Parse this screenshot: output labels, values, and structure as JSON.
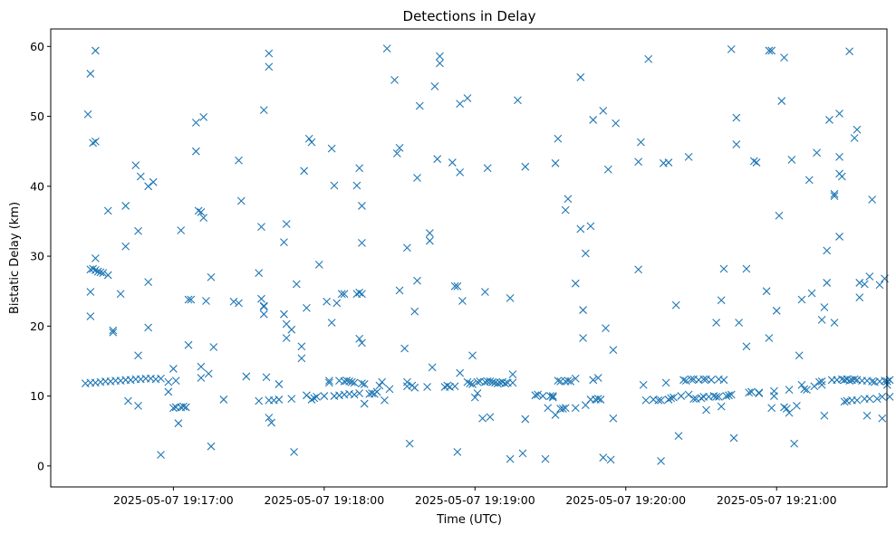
{
  "chart_data": {
    "type": "scatter",
    "title": "Detections in Delay",
    "xlabel": "Time (UTC)",
    "ylabel": "Bistatic Delay (km)",
    "marker": "x",
    "color": "#1f77b4",
    "grid": false,
    "x_unit": "seconds after 2025-05-07 19:17:00",
    "xlim": [
      -48.8,
      283.9
    ],
    "ylim": [
      -3.0,
      62.5
    ],
    "x_ticks": [
      {
        "value": 0,
        "label": "2025-05-07 19:17:00"
      },
      {
        "value": 60,
        "label": "2025-05-07 19:18:00"
      },
      {
        "value": 120,
        "label": "2025-05-07 19:19:00"
      },
      {
        "value": 180,
        "label": "2025-05-07 19:20:00"
      },
      {
        "value": 240,
        "label": "2025-05-07 19:21:00"
      }
    ],
    "y_ticks": [
      0,
      10,
      20,
      30,
      40,
      50,
      60
    ],
    "points": [
      [
        -34,
        50.3
      ],
      [
        -33,
        56.1
      ],
      [
        -32,
        46.2
      ],
      [
        -31,
        59.4
      ],
      [
        -31,
        46.4
      ],
      [
        -33,
        24.9
      ],
      [
        -33,
        21.4
      ],
      [
        -33,
        28.1
      ],
      [
        -32,
        28.2
      ],
      [
        -31,
        28
      ],
      [
        -30,
        27.8
      ],
      [
        -29,
        27.7
      ],
      [
        -28,
        27.6
      ],
      [
        -31,
        29.7
      ],
      [
        -35,
        11.8
      ],
      [
        -33,
        11.9
      ],
      [
        -31,
        11.9
      ],
      [
        -29,
        12
      ],
      [
        -27,
        12.1
      ],
      [
        -25,
        12.1
      ],
      [
        -23,
        12.2
      ],
      [
        -21,
        12.2
      ],
      [
        -19,
        12.3
      ],
      [
        -17,
        12.3
      ],
      [
        -15,
        12.4
      ],
      [
        -13,
        12.4
      ],
      [
        -11,
        12.5
      ],
      [
        -9,
        12.5
      ],
      [
        -7,
        12.4
      ],
      [
        -5,
        12.5
      ],
      [
        -26,
        36.5
      ],
      [
        -26,
        27.3
      ],
      [
        -24,
        19.4
      ],
      [
        -24,
        19.1
      ],
      [
        -21,
        24.6
      ],
      [
        -19,
        37.2
      ],
      [
        -19,
        31.4
      ],
      [
        -18,
        9.3
      ],
      [
        -15,
        43
      ],
      [
        -14,
        33.6
      ],
      [
        -13,
        41.4
      ],
      [
        -14,
        15.8
      ],
      [
        -14,
        8.6
      ],
      [
        -10,
        26.3
      ],
      [
        -10,
        19.8
      ],
      [
        -10,
        40
      ],
      [
        -8,
        40.6
      ],
      [
        -5,
        1.6
      ],
      [
        -2,
        12
      ],
      [
        -2,
        10.6
      ],
      [
        0,
        8.3
      ],
      [
        0,
        13.9
      ],
      [
        1,
        12.2
      ],
      [
        2,
        6.1
      ],
      [
        1,
        8.4
      ],
      [
        3,
        33.7
      ],
      [
        3,
        8.4
      ],
      [
        4,
        8.5
      ],
      [
        5,
        8.4
      ],
      [
        6,
        17.3
      ],
      [
        6,
        23.8
      ],
      [
        7,
        23.8
      ],
      [
        9,
        45
      ],
      [
        9,
        49.1
      ],
      [
        10,
        36.5
      ],
      [
        11,
        36.3
      ],
      [
        11,
        14.2
      ],
      [
        12,
        49.9
      ],
      [
        12,
        35.5
      ],
      [
        13,
        23.6
      ],
      [
        14,
        13.2
      ],
      [
        15,
        2.8
      ],
      [
        15,
        27
      ],
      [
        16,
        17
      ],
      [
        11,
        12.6
      ],
      [
        20,
        9.5
      ],
      [
        24,
        23.5
      ],
      [
        26,
        23.3
      ],
      [
        26,
        43.7
      ],
      [
        27,
        37.9
      ],
      [
        29,
        12.8
      ],
      [
        34,
        27.6
      ],
      [
        34,
        9.3
      ],
      [
        35,
        23.9
      ],
      [
        36,
        22.8
      ],
      [
        36,
        22.9
      ],
      [
        36,
        21.7
      ],
      [
        35,
        34.2
      ],
      [
        36,
        50.9
      ],
      [
        37,
        12.7
      ],
      [
        38,
        57.1
      ],
      [
        38,
        59
      ],
      [
        38,
        6.9
      ],
      [
        39,
        6.2
      ],
      [
        38,
        9.4
      ],
      [
        40,
        9.4
      ],
      [
        42,
        9.5
      ],
      [
        42,
        11.7
      ],
      [
        44,
        21.7
      ],
      [
        44,
        32
      ],
      [
        45,
        34.6
      ],
      [
        45,
        20.3
      ],
      [
        45,
        18.3
      ],
      [
        47,
        19.5
      ],
      [
        47,
        9.6
      ],
      [
        48,
        2
      ],
      [
        49,
        26
      ],
      [
        51,
        17.1
      ],
      [
        51,
        15.4
      ],
      [
        52,
        42.2
      ],
      [
        53,
        22.6
      ],
      [
        53,
        10.1
      ],
      [
        54,
        46.8
      ],
      [
        55,
        46.3
      ],
      [
        55,
        9.5
      ],
      [
        56,
        9.7
      ],
      [
        57,
        9.9
      ],
      [
        58,
        28.8
      ],
      [
        60,
        10
      ],
      [
        61,
        23.5
      ],
      [
        62,
        12.2
      ],
      [
        63,
        20.5
      ],
      [
        63,
        45.4
      ],
      [
        64,
        40.1
      ],
      [
        65,
        23.3
      ],
      [
        66,
        12.2
      ],
      [
        67,
        24.6
      ],
      [
        68,
        24.6
      ],
      [
        68,
        12.1
      ],
      [
        69,
        12.2
      ],
      [
        70,
        12.1
      ],
      [
        71,
        12
      ],
      [
        72,
        11.9
      ],
      [
        73,
        24.6
      ],
      [
        73,
        40.1
      ],
      [
        74,
        24.8
      ],
      [
        74,
        42.6
      ],
      [
        74,
        18.2
      ],
      [
        75,
        17.6
      ],
      [
        75,
        31.9
      ],
      [
        75,
        37.2
      ],
      [
        75,
        24.6
      ],
      [
        75,
        11.8
      ],
      [
        76,
        11.7
      ],
      [
        76,
        8.9
      ],
      [
        78,
        10.3
      ],
      [
        79,
        10.4
      ],
      [
        80,
        10.3
      ],
      [
        81,
        10.6
      ],
      [
        82,
        11.5
      ],
      [
        83,
        12
      ],
      [
        84,
        9.4
      ],
      [
        85,
        59.7
      ],
      [
        86,
        11
      ],
      [
        88,
        55.2
      ],
      [
        89,
        44.7
      ],
      [
        90,
        45.5
      ],
      [
        90,
        25.1
      ],
      [
        92,
        16.8
      ],
      [
        93,
        12
      ],
      [
        93,
        11.4
      ],
      [
        93,
        31.2
      ],
      [
        94,
        3.2
      ],
      [
        95,
        11.5
      ],
      [
        96,
        22.1
      ],
      [
        96,
        11.2
      ],
      [
        97,
        26.5
      ],
      [
        97,
        41.2
      ],
      [
        98,
        51.5
      ],
      [
        62,
        11.9
      ],
      [
        64,
        10
      ],
      [
        66,
        10.1
      ],
      [
        68,
        10.2
      ],
      [
        70,
        10.3
      ],
      [
        72,
        10.2
      ],
      [
        74,
        10.4
      ],
      [
        101,
        11.3
      ],
      [
        102,
        32.2
      ],
      [
        102,
        33.3
      ],
      [
        103,
        14.1
      ],
      [
        104,
        54.3
      ],
      [
        105,
        43.9
      ],
      [
        106,
        58.6
      ],
      [
        106,
        57.6
      ],
      [
        108,
        11.3
      ],
      [
        109,
        11.5
      ],
      [
        110,
        11.3
      ],
      [
        111,
        43.4
      ],
      [
        112,
        11.4
      ],
      [
        112,
        25.7
      ],
      [
        113,
        25.7
      ],
      [
        113,
        2
      ],
      [
        114,
        42
      ],
      [
        114,
        51.8
      ],
      [
        114,
        13.3
      ],
      [
        115,
        23.6
      ],
      [
        117,
        12
      ],
      [
        117,
        52.6
      ],
      [
        118,
        11.8
      ],
      [
        119,
        15.8
      ],
      [
        119,
        11.7
      ],
      [
        120,
        9.8
      ],
      [
        121,
        12
      ],
      [
        121,
        10.4
      ],
      [
        122,
        12.1
      ],
      [
        123,
        6.8
      ],
      [
        124,
        12
      ],
      [
        124,
        24.9
      ],
      [
        125,
        12.1
      ],
      [
        125,
        42.6
      ],
      [
        126,
        7
      ],
      [
        126,
        12.1
      ],
      [
        127,
        12
      ],
      [
        128,
        11.9
      ],
      [
        129,
        11.8
      ],
      [
        130,
        11.9
      ],
      [
        131,
        12
      ],
      [
        132,
        11.8
      ],
      [
        133,
        11.9
      ],
      [
        134,
        1
      ],
      [
        134,
        24
      ],
      [
        135,
        13.1
      ],
      [
        135,
        11.9
      ],
      [
        137,
        52.3
      ],
      [
        139,
        1.8
      ],
      [
        140,
        42.8
      ],
      [
        140,
        6.7
      ],
      [
        144,
        10.1
      ],
      [
        145,
        10.2
      ],
      [
        147,
        10
      ],
      [
        148,
        1
      ],
      [
        149,
        8.3
      ],
      [
        150,
        10
      ],
      [
        151,
        10
      ],
      [
        151,
        9.8
      ],
      [
        152,
        7.3
      ],
      [
        152,
        43.3
      ],
      [
        153,
        46.8
      ],
      [
        153,
        12.2
      ],
      [
        154,
        8.2
      ],
      [
        154,
        12.1
      ],
      [
        155,
        8.2
      ],
      [
        156,
        8.3
      ],
      [
        156,
        12.1
      ],
      [
        157,
        12.2
      ],
      [
        156,
        36.6
      ],
      [
        157,
        38.2
      ],
      [
        158,
        12.1
      ],
      [
        160,
        8.3
      ],
      [
        160,
        26.1
      ],
      [
        160,
        12.5
      ],
      [
        162,
        55.6
      ],
      [
        162,
        33.9
      ],
      [
        163,
        22.3
      ],
      [
        163,
        18.3
      ],
      [
        164,
        30.4
      ],
      [
        164,
        8.7
      ],
      [
        166,
        34.3
      ],
      [
        166,
        9.5
      ],
      [
        167,
        49.5
      ],
      [
        167,
        12.3
      ],
      [
        168,
        9.5
      ],
      [
        169,
        9.6
      ],
      [
        169,
        12.6
      ],
      [
        170,
        9.5
      ],
      [
        171,
        50.8
      ],
      [
        171,
        1.2
      ],
      [
        172,
        19.7
      ],
      [
        173,
        42.4
      ],
      [
        174,
        0.9
      ],
      [
        175,
        6.8
      ],
      [
        175,
        16.6
      ],
      [
        176,
        49
      ],
      [
        185,
        28.1
      ],
      [
        185,
        43.5
      ],
      [
        186,
        46.3
      ],
      [
        187,
        11.6
      ],
      [
        188,
        9.4
      ],
      [
        189,
        58.2
      ],
      [
        191,
        9.5
      ],
      [
        193,
        9.4
      ],
      [
        194,
        9.4
      ],
      [
        194,
        0.7
      ],
      [
        195,
        43.3
      ],
      [
        196,
        11.9
      ],
      [
        197,
        9.5
      ],
      [
        197,
        43.4
      ],
      [
        198,
        9.7
      ],
      [
        199,
        9.8
      ],
      [
        200,
        23
      ],
      [
        201,
        4.3
      ],
      [
        202,
        10
      ],
      [
        203,
        12.3
      ],
      [
        204,
        12.2
      ],
      [
        205,
        44.2
      ],
      [
        205,
        10.2
      ],
      [
        206,
        12.4
      ],
      [
        207,
        9.6
      ],
      [
        207,
        12.4
      ],
      [
        208,
        9.6
      ],
      [
        209,
        12.3
      ],
      [
        210,
        9.7
      ],
      [
        211,
        12.4
      ],
      [
        211,
        9.9
      ],
      [
        212,
        8
      ],
      [
        212,
        12.4
      ],
      [
        213,
        9.9
      ],
      [
        214,
        12.3
      ],
      [
        215,
        10
      ],
      [
        216,
        20.5
      ],
      [
        216,
        9.9
      ],
      [
        217,
        12.4
      ],
      [
        217,
        9.9
      ],
      [
        218,
        8.5
      ],
      [
        218,
        23.7
      ],
      [
        219,
        12.3
      ],
      [
        219,
        28.2
      ],
      [
        220,
        10
      ],
      [
        221,
        10.1
      ],
      [
        222,
        59.6
      ],
      [
        222,
        10.2
      ],
      [
        223,
        4
      ],
      [
        224,
        46
      ],
      [
        224,
        49.8
      ],
      [
        225,
        20.5
      ],
      [
        228,
        28.2
      ],
      [
        228,
        17.1
      ],
      [
        229,
        10.5
      ],
      [
        230,
        10.6
      ],
      [
        231,
        43.6
      ],
      [
        232,
        43.4
      ],
      [
        233,
        10.4
      ],
      [
        233,
        10.5
      ],
      [
        236,
        25
      ],
      [
        237,
        18.3
      ],
      [
        237,
        59.4
      ],
      [
        238,
        59.4
      ],
      [
        238,
        8.3
      ],
      [
        239,
        10
      ],
      [
        239,
        10.7
      ],
      [
        240,
        22.2
      ],
      [
        241,
        35.8
      ],
      [
        242,
        52.2
      ],
      [
        243,
        58.4
      ],
      [
        243,
        8.4
      ],
      [
        244,
        8.2
      ],
      [
        245,
        7.6
      ],
      [
        245,
        10.9
      ],
      [
        246,
        43.8
      ],
      [
        247,
        3.2
      ],
      [
        248,
        8.6
      ],
      [
        249,
        15.8
      ],
      [
        250,
        23.8
      ],
      [
        250,
        11.6
      ],
      [
        251,
        11
      ],
      [
        252,
        10.9
      ],
      [
        253,
        40.9
      ],
      [
        254,
        24.7
      ],
      [
        255,
        11.4
      ],
      [
        256,
        44.8
      ],
      [
        257,
        12
      ],
      [
        258,
        20.9
      ],
      [
        258,
        11.6
      ],
      [
        258,
        12.1
      ],
      [
        259,
        7.2
      ],
      [
        259,
        22.7
      ],
      [
        260,
        30.8
      ],
      [
        260,
        26.2
      ],
      [
        261,
        49.5
      ],
      [
        262,
        12.3
      ],
      [
        263,
        38.9
      ],
      [
        263,
        38.6
      ],
      [
        263,
        20.5
      ],
      [
        264,
        12.3
      ],
      [
        265,
        50.4
      ],
      [
        265,
        44.2
      ],
      [
        265,
        41.8
      ],
      [
        265,
        32.8
      ],
      [
        266,
        41.4
      ],
      [
        266,
        12.4
      ],
      [
        267,
        12.3
      ],
      [
        267,
        9.2
      ],
      [
        268,
        12.4
      ],
      [
        268,
        9.3
      ],
      [
        269,
        12.2
      ],
      [
        269,
        59.3
      ],
      [
        270,
        12.3
      ],
      [
        270,
        9.4
      ],
      [
        271,
        12.4
      ],
      [
        271,
        46.9
      ],
      [
        272,
        9.4
      ],
      [
        272,
        12.3
      ],
      [
        272,
        48.1
      ],
      [
        273,
        26.2
      ],
      [
        273,
        24.1
      ],
      [
        274,
        12.2
      ],
      [
        275,
        26
      ],
      [
        275,
        9.6
      ],
      [
        276,
        7.2
      ],
      [
        276,
        12.2
      ],
      [
        277,
        27.1
      ],
      [
        277,
        9.6
      ],
      [
        278,
        38.1
      ],
      [
        278,
        12.1
      ],
      [
        279,
        12
      ],
      [
        280,
        9.6
      ],
      [
        281,
        25.9
      ],
      [
        281,
        12.1
      ],
      [
        282,
        6.8
      ],
      [
        282,
        9.9
      ],
      [
        283,
        26.8
      ],
      [
        283,
        12.2
      ],
      [
        284,
        11.6
      ],
      [
        284,
        12.1
      ],
      [
        285,
        12.3
      ],
      [
        285,
        9.9
      ]
    ]
  }
}
